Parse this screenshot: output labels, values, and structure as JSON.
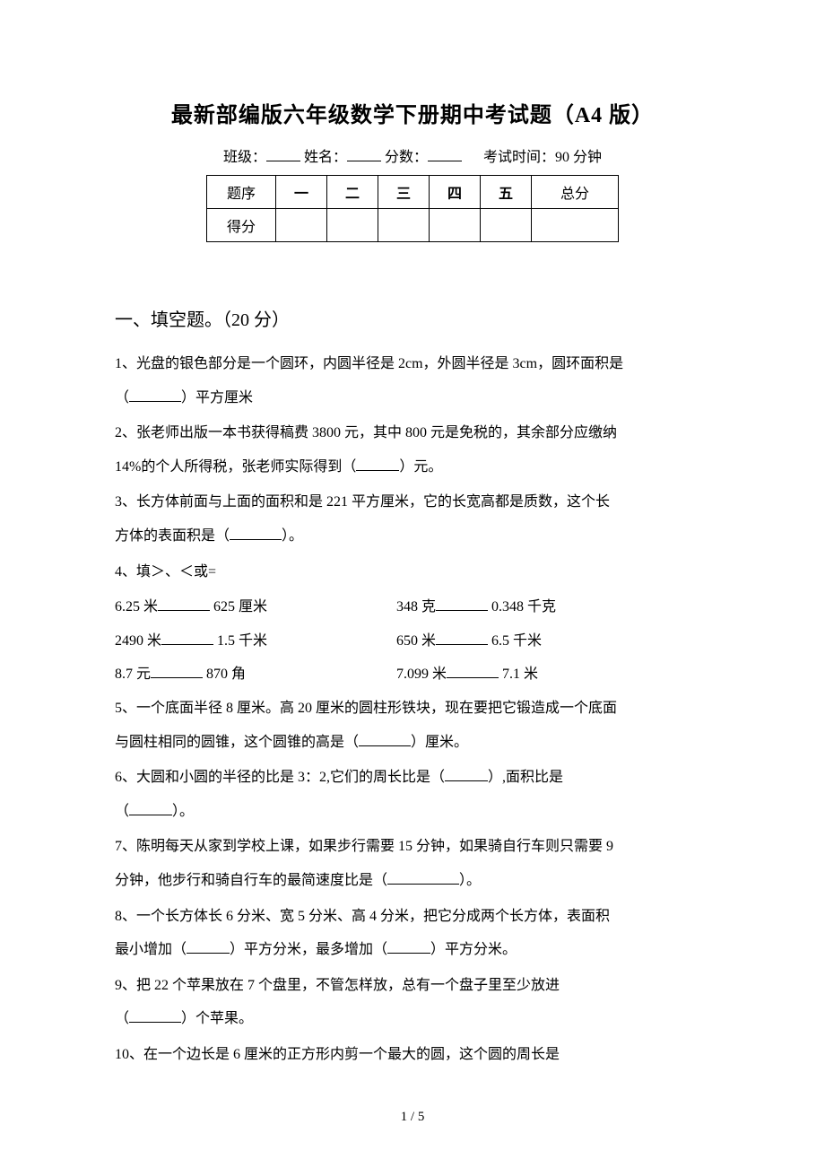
{
  "title": "最新部编版六年级数学下册期中考试题（A4 版）",
  "info": {
    "class_label": "班级：",
    "name_label": "姓名：",
    "score_label": "分数：",
    "time_label": "考试时间：90 分钟"
  },
  "score_table": {
    "header": [
      "题序",
      "一",
      "二",
      "三",
      "四",
      "五",
      "总分"
    ],
    "row_label": "得分"
  },
  "section1": {
    "title": "一、填空题。（20 分）",
    "q1a": "1、光盘的银色部分是一个圆环，内圆半径是 2cm，外圆半径是 3cm，圆环面积是",
    "q1b": "（",
    "q1c": "）平方厘米",
    "q2a": "2、张老师出版一本书获得稿费 3800 元，其中 800 元是免税的，其余部分应缴纳",
    "q2b": "14%的个人所得税，张老师实际得到（",
    "q2c": "）元。",
    "q3a": "3、长方体前面与上面的面积和是 221 平方厘米，它的长宽高都是质数，这个长",
    "q3b": "方体的表面积是（",
    "q3c": "）。",
    "q4": "4、填＞、＜或=",
    "q4_pairs": [
      {
        "l": "6.25 米",
        "l2": " 625 厘米",
        "r": "348 克",
        "r2": " 0.348 千克"
      },
      {
        "l": "2490 米",
        "l2": " 1.5 千米",
        "r": "650 米",
        "r2": " 6.5 千米"
      },
      {
        "l": "8.7 元",
        "l2": " 870 角",
        "r": "7.099 米",
        "r2": " 7.1 米"
      }
    ],
    "q5a": "5、一个底面半径 8 厘米。高 20 厘米的圆柱形铁块，现在要把它锻造成一个底面",
    "q5b": "与圆柱相同的圆锥，这个圆锥的高是（",
    "q5c": "）厘米。",
    "q6a": "6、大圆和小圆的半径的比是 3：2,它们的周长比是（",
    "q6b": "）,面积比是",
    "q6c": "（",
    "q6d": "）。",
    "q7a": "7、陈明每天从家到学校上课，如果步行需要 15 分钟，如果骑自行车则只需要 9",
    "q7b": "分钟，他步行和骑自行车的最简速度比是（",
    "q7c": "）。",
    "q8a": "8、一个长方体长 6 分米、宽 5 分米、高 4 分米，把它分成两个长方体，表面积",
    "q8b": "最小增加（",
    "q8c": "）平方分米，最多增加（",
    "q8d": "）平方分米。",
    "q9a": "9、把 22 个苹果放在 7 个盘里，不管怎样放，总有一个盘子里至少放进",
    "q9b": "（",
    "q9c": "）个苹果。",
    "q10": "10、在一个边长是 6 厘米的正方形内剪一个最大的圆，这个圆的周长是"
  },
  "page_num": "1 / 5"
}
